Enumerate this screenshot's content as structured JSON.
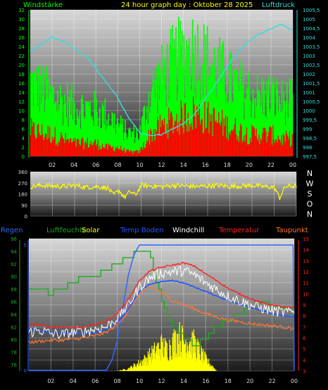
{
  "title": "24 hour graph day : Oktober 28 2025",
  "colors": {
    "wind": "#00ff00",
    "gust": "#ff0000",
    "pressure": "#33dddd",
    "direction": "#ffff00",
    "rain": "#3366ff",
    "humidity": "#22aa22",
    "solar": "#ffff00",
    "soil": "#2255ff",
    "windchill": "#ffffff",
    "temperature": "#ff2222",
    "dewpoint": "#ff7733",
    "scale_text": "#dddddd",
    "pressure_text": "#33dddd",
    "humidity_axis": "#22aa22",
    "rain_axis": "#3366ff",
    "temp_axis": "#ff2222"
  },
  "chart_data": [
    {
      "type": "bar",
      "panel": "wind",
      "title": "24 hour graph day : Oktober 28 2025",
      "left_label": "Windstärke",
      "right_label": "Luftdruck",
      "x_ticks": [
        "02",
        "04",
        "06",
        "08",
        "10",
        "12",
        "14",
        "16",
        "18",
        "20",
        "22",
        "00"
      ],
      "x_range": [
        0,
        24
      ],
      "ylim_left": [
        0,
        32
      ],
      "yticks_left": [
        "0",
        "2",
        "4",
        "6",
        "8",
        "10",
        "12",
        "14",
        "16",
        "18",
        "20",
        "22",
        "24",
        "26",
        "28",
        "30",
        "32"
      ],
      "ylim_right": [
        997.5,
        1005.5
      ],
      "yticks_right": [
        "997,5",
        "998",
        "998,5",
        "999",
        "999,5",
        "1000",
        "1000,5",
        "1001",
        "1001,5",
        "1002",
        "1002,5",
        "1003",
        "1003,5",
        "1004",
        "1004,5",
        "1005",
        "1005,5"
      ],
      "series": [
        {
          "name": "Windstärke",
          "x": [
            0,
            2,
            4,
            6,
            7,
            8,
            9,
            10,
            11,
            12,
            13,
            14,
            15,
            16,
            17,
            18,
            19,
            20,
            21,
            22,
            23,
            24
          ],
          "values": [
            16,
            13,
            11,
            10,
            9,
            7,
            5,
            5,
            14,
            17,
            20,
            22,
            23,
            21,
            19,
            17,
            15,
            14,
            13,
            13,
            12,
            12
          ]
        },
        {
          "name": "Böen",
          "x": [
            0,
            2,
            4,
            6,
            7,
            8,
            9,
            10,
            11,
            12,
            13,
            14,
            15,
            16,
            17,
            18,
            19,
            20,
            21,
            22,
            23,
            24
          ],
          "values": [
            6,
            5,
            3,
            3,
            2,
            2,
            1,
            1,
            5,
            7,
            8,
            9,
            10,
            9,
            8,
            7,
            6,
            5,
            5,
            5,
            4,
            4
          ]
        },
        {
          "name": "Luftdruck",
          "x": [
            0,
            1,
            2,
            3,
            4,
            5,
            6,
            7,
            8,
            9,
            10,
            11,
            12,
            13,
            14,
            15,
            16,
            17,
            18,
            19,
            20,
            21,
            22,
            23,
            24
          ],
          "values": [
            1003.2,
            1003.6,
            1004.0,
            1003.8,
            1003.4,
            1003.0,
            1002.3,
            1001.5,
            1000.7,
            999.6,
            998.8,
            998.6,
            998.7,
            999.0,
            999.3,
            999.8,
            1000.6,
            1001.5,
            1002.4,
            1003.2,
            1003.8,
            1004.2,
            1004.5,
            1004.7,
            1004.4
          ]
        }
      ]
    },
    {
      "type": "line",
      "panel": "direction",
      "ylim": [
        0,
        360
      ],
      "yticks": [
        "0",
        "90",
        "180",
        "270",
        "360"
      ],
      "right_labels": [
        "N",
        "W",
        "S",
        "O",
        "N"
      ],
      "x_range": [
        0,
        24
      ],
      "series": [
        {
          "name": "Windrichtung",
          "x": [
            0,
            1,
            2,
            3,
            4,
            5,
            6,
            7,
            7.5,
            8,
            8.5,
            9,
            9.5,
            10,
            11,
            12,
            13,
            14,
            15,
            16,
            17,
            18,
            19,
            20,
            21,
            22,
            22.5,
            23,
            24
          ],
          "values": [
            240,
            250,
            245,
            240,
            250,
            235,
            240,
            230,
            170,
            210,
            150,
            200,
            170,
            250,
            245,
            240,
            250,
            245,
            240,
            245,
            250,
            240,
            245,
            250,
            240,
            235,
            150,
            240,
            245
          ]
        }
      ]
    },
    {
      "type": "line",
      "panel": "weather",
      "legend": [
        "Regen",
        "Luftfeuchte",
        "Solar",
        "Temp Boden",
        "Windchill",
        "Temperatur",
        "Taupunkt"
      ],
      "x_ticks": [
        "02",
        "04",
        "06",
        "08",
        "10",
        "12",
        "14",
        "16",
        "18",
        "20",
        "22",
        "00"
      ],
      "x_range": [
        0,
        24
      ],
      "ylim_humidity": [
        75,
        96
      ],
      "yticks_humidity": [
        "76",
        "78",
        "80",
        "82",
        "84",
        "86",
        "88",
        "90",
        "92",
        "94",
        "96"
      ],
      "ylim_temp": [
        3,
        15
      ],
      "yticks_temp": [
        "3",
        "4",
        "5",
        "6",
        "7",
        "8",
        "9",
        "10",
        "11",
        "12",
        "13",
        "14",
        "15"
      ],
      "ylim_rain": [
        0,
        5
      ],
      "yticks_rain": [
        "0",
        "5"
      ],
      "series": [
        {
          "name": "Luftfeuchte",
          "x": [
            0,
            1,
            2,
            2.5,
            3,
            4,
            5,
            6,
            7,
            8,
            9,
            10,
            10.5,
            11,
            11.5,
            12,
            12.5,
            13,
            14,
            15,
            16,
            17,
            18,
            19,
            20,
            21,
            22,
            23,
            24
          ],
          "values": [
            88,
            88,
            87,
            88,
            88,
            89,
            90,
            90,
            91,
            92,
            93,
            94,
            94,
            93,
            89,
            86,
            84,
            82,
            80,
            79,
            80,
            82,
            83,
            84,
            85,
            86,
            85,
            85,
            84
          ]
        },
        {
          "name": "Temperatur",
          "x": [
            0,
            1,
            2,
            3,
            4,
            5,
            6,
            7,
            8,
            9,
            10,
            11,
            12,
            13,
            14,
            15,
            16,
            17,
            18,
            19,
            20,
            21,
            22,
            23,
            24
          ],
          "values": [
            7.2,
            7.2,
            7.0,
            7.0,
            6.9,
            7.0,
            7.2,
            7.5,
            8.2,
            9.5,
            11.2,
            12.1,
            12.4,
            12.6,
            12.8,
            12.5,
            11.8,
            11.2,
            10.5,
            10.0,
            9.6,
            9.2,
            9.0,
            8.8,
            8.7
          ]
        },
        {
          "name": "Windchill",
          "x": [
            0,
            1,
            2,
            3,
            4,
            5,
            6,
            7,
            8,
            9,
            10,
            11,
            12,
            13,
            14,
            15,
            16,
            17,
            18,
            19,
            20,
            21,
            22,
            23,
            24
          ],
          "values": [
            6.5,
            6.7,
            6.4,
            6.3,
            6.5,
            6.6,
            6.8,
            7.0,
            7.8,
            9.0,
            10.6,
            11.5,
            11.9,
            12.0,
            12.1,
            11.7,
            11.0,
            10.4,
            9.8,
            9.4,
            9.0,
            8.7,
            8.5,
            8.3,
            8.4
          ]
        },
        {
          "name": "Temp Boden",
          "x": [
            0,
            1,
            2,
            3,
            4,
            5,
            6,
            7,
            8,
            9,
            10,
            11,
            12,
            13,
            14,
            15,
            16,
            17,
            18,
            19,
            20,
            21,
            22,
            23,
            24
          ],
          "values": [
            6.8,
            6.6,
            6.5,
            6.5,
            6.4,
            6.4,
            6.5,
            6.8,
            7.4,
            8.6,
            10.2,
            10.9,
            11.1,
            11.2,
            11.0,
            10.6,
            10.2,
            9.8,
            9.4,
            9.1,
            8.8,
            8.5,
            8.2,
            8.0,
            7.9
          ]
        },
        {
          "name": "Taupunkt",
          "x": [
            0,
            1,
            2,
            3,
            4,
            5,
            6,
            7,
            8,
            9,
            10,
            11,
            12,
            13,
            14,
            15,
            16,
            17,
            18,
            19,
            20,
            21,
            22,
            23,
            24
          ],
          "values": [
            5.6,
            5.7,
            5.8,
            5.8,
            5.9,
            6.0,
            6.2,
            6.5,
            7.2,
            8.4,
            10.0,
            10.6,
            10.1,
            9.4,
            9.0,
            8.6,
            8.2,
            7.9,
            7.6,
            7.5,
            7.3,
            7.2,
            7.1,
            7.0,
            6.8
          ]
        },
        {
          "name": "Regen",
          "x": [
            0,
            2,
            4,
            6,
            7,
            7.5,
            8,
            8.5,
            9,
            9.5,
            10,
            11,
            12,
            13,
            14,
            15,
            16,
            17,
            18,
            19,
            20,
            21,
            22,
            23,
            23.9,
            24
          ],
          "values": [
            0,
            0,
            0,
            0,
            0,
            0.4,
            1.2,
            2.5,
            3.8,
            4.6,
            5,
            5,
            5,
            5,
            5,
            5,
            5,
            5,
            5,
            5,
            5,
            5,
            5,
            5,
            5,
            0
          ]
        },
        {
          "name": "Solar",
          "x": [
            0,
            7,
            8,
            9,
            10,
            10.5,
            11,
            11.5,
            12,
            12.5,
            13,
            13.5,
            14,
            14.5,
            15,
            15.5,
            16,
            16.5,
            17,
            24
          ],
          "values": [
            0,
            0,
            0,
            0.2,
            0.7,
            1.0,
            1.4,
            1.8,
            2.2,
            1.9,
            2.4,
            3.0,
            2.6,
            2.8,
            2.3,
            1.6,
            1.0,
            0.5,
            0,
            0
          ]
        }
      ]
    }
  ]
}
